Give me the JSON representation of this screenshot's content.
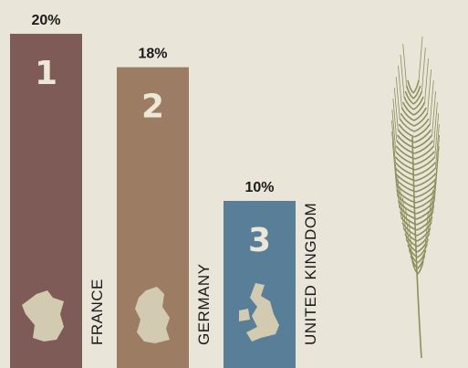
{
  "chart_data": {
    "type": "bar",
    "categories": [
      "FRANCE",
      "GERMANY",
      "UNITED KINGDOM"
    ],
    "values": [
      20,
      18,
      10
    ],
    "value_labels": [
      "20%",
      "18%",
      "10%"
    ],
    "ranks": [
      "1",
      "2",
      "3"
    ],
    "colors": [
      "#7e5b56",
      "#9c7c63",
      "#587f97"
    ],
    "ylim": [
      0,
      20
    ]
  }
}
